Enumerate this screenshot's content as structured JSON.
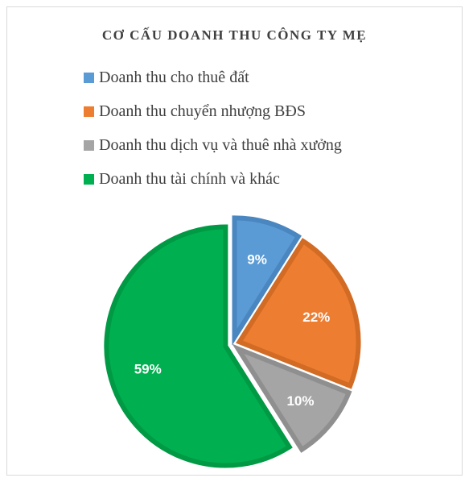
{
  "chart_data": {
    "type": "pie",
    "title": "CƠ CẤU DOANH THU CÔNG TY MẸ",
    "legend_position": "top",
    "exploded": true,
    "slices": [
      {
        "name": "Doanh thu cho thuê đất",
        "value": 9,
        "label": "9%",
        "color": "#5b9bd5",
        "border": "#4a86c0"
      },
      {
        "name": "Doanh thu chuyển nhượng BĐS",
        "value": 22,
        "label": "22%",
        "color": "#ed7d31",
        "border": "#d26b24"
      },
      {
        "name": "Doanh thu dịch vụ và thuê nhà xưởng",
        "value": 10,
        "label": "10%",
        "color": "#a5a5a5",
        "border": "#8f8f8f"
      },
      {
        "name": "Doanh thu tài chính và khác",
        "value": 59,
        "label": "59%",
        "color": "#00b050",
        "border": "#009944"
      }
    ]
  }
}
